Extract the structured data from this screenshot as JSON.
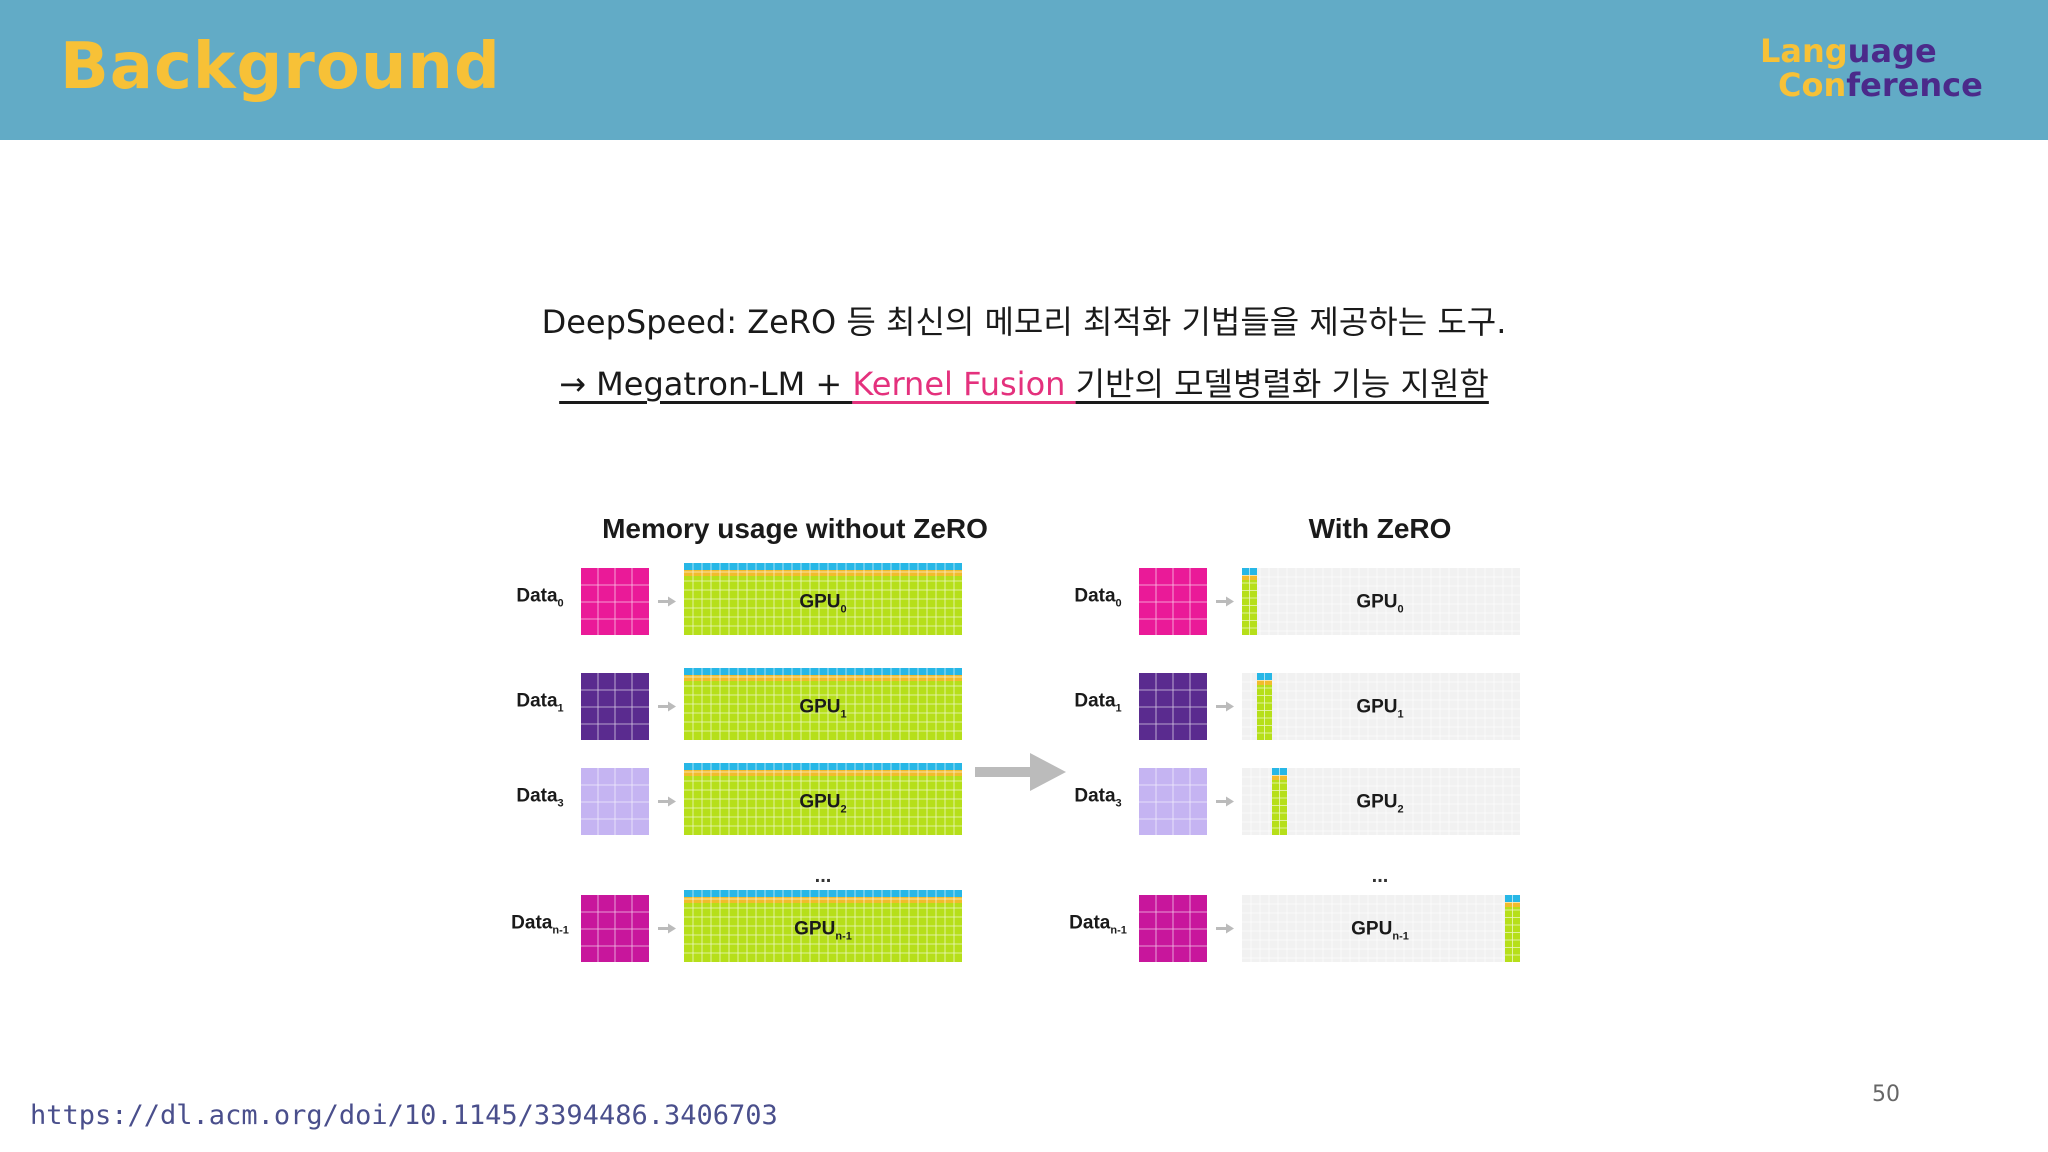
{
  "header": {
    "title": "Background",
    "logo": {
      "line1_a": "Lang",
      "line1_b": "uage",
      "line2_a": "Con",
      "line2_b": "ference"
    }
  },
  "content": {
    "line1": "DeepSpeed: ZeRO 등 최신의 메모리 최적화 기법들을 제공하는 도구.",
    "line2_prefix": "→ Megatron-LM + ",
    "line2_highlight": "Kernel Fusion ",
    "line2_suffix": "기반의 모델병렬화 기능 지원함"
  },
  "figure": {
    "left_title": "Memory usage without ZeRO",
    "right_title": "With ZeRO",
    "ellipsis": "...",
    "rows": [
      {
        "data_label": "Data",
        "data_sub": "0",
        "gpu_label": "GPU",
        "gpu_sub": "0",
        "data_color": "#ea1a98"
      },
      {
        "data_label": "Data",
        "data_sub": "1",
        "gpu_label": "GPU",
        "gpu_sub": "1",
        "data_color": "#5a2b8f"
      },
      {
        "data_label": "Data",
        "data_sub": "3",
        "gpu_label": "GPU",
        "gpu_sub": "2",
        "data_color": "#c5b4f2"
      },
      {
        "data_label": "Data",
        "data_sub": "n-1",
        "gpu_label": "GPU",
        "gpu_sub": "n-1",
        "data_color": "#c8169c"
      }
    ],
    "colors": {
      "model": "#b6df1a",
      "optimizer": "#f1bc2c",
      "gradient": "#27b7e6",
      "empty": "#f1f1f1",
      "arrow": "#bbbbbb"
    }
  },
  "footer": {
    "link": "https://dl.acm.org/doi/10.1145/3394486.3406703",
    "page": "50"
  }
}
